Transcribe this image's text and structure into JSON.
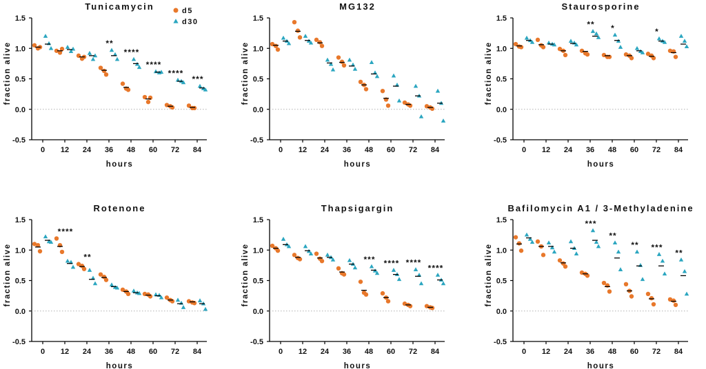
{
  "colors": {
    "d5": "#e8782b",
    "d30": "#2ba6c0",
    "axis": "#000000",
    "zero_line": "#b0b0b0"
  },
  "legend": [
    {
      "name": "d5",
      "symbol": "circle"
    },
    {
      "name": "d30",
      "symbol": "triangle"
    }
  ],
  "chart_data": [
    {
      "type": "scatter",
      "title": "Tunicamycin",
      "xlabel": "hours",
      "ylabel": "fraction alive",
      "x": [
        0,
        12,
        24,
        36,
        48,
        60,
        72,
        84
      ],
      "ylim": [
        -0.5,
        1.5
      ],
      "yticks": [
        "-0.5",
        "0.0",
        "0.5",
        "1.0",
        "1.5"
      ],
      "zero_line": true,
      "legend_placement": "top-right",
      "series": [
        {
          "name": "d5",
          "points": [
            [
              1.05,
              1.0,
              1.02
            ],
            [
              0.96,
              0.93,
              0.99
            ],
            [
              0.88,
              0.83,
              0.86
            ],
            [
              0.68,
              0.63,
              0.57
            ],
            [
              0.42,
              0.34,
              0.32
            ],
            [
              0.2,
              0.12,
              0.19
            ],
            [
              0.07,
              0.05,
              0.03
            ],
            [
              0.06,
              0.02,
              0.02
            ]
          ],
          "means": [
            1.02,
            0.96,
            0.86,
            0.64,
            0.36,
            0.17,
            0.05,
            0.03
          ]
        },
        {
          "name": "d30",
          "points": [
            [
              1.2,
              1.08,
              1.0
            ],
            [
              1.02,
              0.95,
              0.99
            ],
            [
              0.92,
              0.82,
              0.88
            ],
            [
              0.97,
              0.9,
              0.82
            ],
            [
              0.82,
              0.74,
              0.69
            ],
            [
              0.62,
              0.6,
              0.61
            ],
            [
              0.48,
              0.46,
              0.44
            ],
            [
              0.38,
              0.34,
              0.32
            ]
          ],
          "means": [
            1.07,
            0.98,
            0.88,
            0.88,
            0.75,
            0.61,
            0.46,
            0.35
          ]
        }
      ],
      "annotations": [
        "",
        "",
        "",
        "**",
        "****",
        "****",
        "****",
        "***"
      ]
    },
    {
      "type": "scatter",
      "title": "MG132",
      "xlabel": "hours",
      "ylabel": "fraction alive",
      "x": [
        0,
        12,
        24,
        36,
        48,
        60,
        72,
        84
      ],
      "ylim": [
        -0.5,
        1.5
      ],
      "yticks": [
        "-0.5",
        "0.0",
        "0.5",
        "1.0",
        "1.5"
      ],
      "zero_line": true,
      "legend_placement": "none",
      "series": [
        {
          "name": "d5",
          "points": [
            [
              1.07,
              1.04,
              0.98
            ],
            [
              1.43,
              1.29,
              1.18
            ],
            [
              1.14,
              1.1,
              1.04
            ],
            [
              0.85,
              0.78,
              0.72
            ],
            [
              0.45,
              0.4,
              0.33
            ],
            [
              0.3,
              0.16,
              0.06
            ],
            [
              0.11,
              0.08,
              0.06
            ],
            [
              0.05,
              0.03,
              0.01
            ]
          ],
          "means": [
            1.05,
            1.28,
            1.09,
            0.77,
            0.4,
            0.18,
            0.08,
            0.03
          ]
        },
        {
          "name": "d30",
          "points": [
            [
              1.17,
              1.12,
              1.08
            ],
            [
              1.2,
              1.12,
              1.09
            ],
            [
              0.81,
              0.74,
              0.65
            ],
            [
              0.81,
              0.73,
              0.66
            ],
            [
              0.77,
              0.6,
              0.54
            ],
            [
              0.55,
              0.4,
              0.14
            ],
            [
              0.38,
              0.22,
              -0.12
            ],
            [
              0.3,
              0.1,
              -0.19
            ]
          ],
          "means": [
            1.12,
            1.13,
            0.76,
            0.71,
            0.58,
            0.38,
            0.22,
            0.1
          ]
        }
      ],
      "annotations": [
        "",
        "",
        "",
        "",
        "",
        "",
        "",
        ""
      ]
    },
    {
      "type": "scatter",
      "title": "Staurosporine",
      "xlabel": "hours",
      "ylabel": "fraction alive",
      "x": [
        0,
        12,
        24,
        36,
        48,
        60,
        72,
        84
      ],
      "ylim": [
        -0.5,
        1.5
      ],
      "yticks": [
        "-0.5",
        "0.0",
        "0.5",
        "1.0",
        "1.5"
      ],
      "zero_line": true,
      "legend_placement": "none",
      "series": [
        {
          "name": "d5",
          "points": [
            [
              1.07,
              1.03,
              1.02
            ],
            [
              1.14,
              1.05,
              1.02
            ],
            [
              0.99,
              0.96,
              0.89
            ],
            [
              0.96,
              0.92,
              0.9
            ],
            [
              0.89,
              0.86,
              0.86
            ],
            [
              0.9,
              0.88,
              0.84
            ],
            [
              0.91,
              0.88,
              0.84
            ],
            [
              0.96,
              0.95,
              0.86
            ]
          ],
          "means": [
            1.04,
            1.06,
            0.96,
            0.95,
            0.88,
            0.88,
            0.87,
            0.93
          ]
        },
        {
          "name": "d30",
          "points": [
            [
              1.17,
              1.13,
              1.1
            ],
            [
              1.09,
              1.07,
              1.06
            ],
            [
              1.12,
              1.09,
              1.06
            ],
            [
              1.28,
              1.24,
              1.18
            ],
            [
              1.22,
              1.12,
              1.02
            ],
            [
              1.0,
              0.95,
              0.93
            ],
            [
              1.16,
              1.12,
              1.1
            ],
            [
              1.2,
              1.12,
              1.03
            ]
          ],
          "means": [
            1.13,
            1.07,
            1.08,
            1.2,
            1.13,
            0.96,
            1.12,
            1.07
          ]
        }
      ],
      "annotations": [
        "",
        "",
        "",
        "**",
        "*",
        "",
        "*",
        ""
      ]
    },
    {
      "type": "scatter",
      "title": "Rotenone",
      "xlabel": "hours",
      "ylabel": "fraction alive",
      "x": [
        0,
        12,
        24,
        36,
        48,
        60,
        72,
        84
      ],
      "ylim": [
        -0.5,
        1.5
      ],
      "yticks": [
        "-0.5",
        "0.0",
        "0.5",
        "1.0",
        "1.5"
      ],
      "zero_line": true,
      "legend_placement": "none",
      "series": [
        {
          "name": "d5",
          "points": [
            [
              1.1,
              1.08,
              0.98
            ],
            [
              1.19,
              1.08,
              0.97
            ],
            [
              0.77,
              0.74,
              0.69
            ],
            [
              0.6,
              0.56,
              0.51
            ],
            [
              0.35,
              0.32,
              0.28
            ],
            [
              0.28,
              0.27,
              0.24
            ],
            [
              0.22,
              0.18,
              0.16
            ],
            [
              0.16,
              0.14,
              0.13
            ]
          ],
          "means": [
            1.05,
            1.06,
            0.73,
            0.55,
            0.32,
            0.26,
            0.18,
            0.15
          ]
        },
        {
          "name": "d30",
          "points": [
            [
              1.22,
              1.14,
              1.13
            ],
            [
              0.82,
              0.8,
              0.72
            ],
            [
              0.67,
              0.54,
              0.45
            ],
            [
              0.43,
              0.39,
              0.38
            ],
            [
              0.33,
              0.3,
              0.29
            ],
            [
              0.27,
              0.26,
              0.22
            ],
            [
              0.18,
              0.13,
              0.06
            ],
            [
              0.17,
              0.12,
              0.03
            ]
          ],
          "means": [
            1.16,
            0.78,
            0.52,
            0.4,
            0.3,
            0.25,
            0.12,
            0.12
          ]
        }
      ],
      "annotations": [
        "",
        "****",
        "**",
        "",
        "",
        "",
        "",
        ""
      ]
    },
    {
      "type": "scatter",
      "title": "Thapsigargin",
      "xlabel": "hours",
      "ylabel": "fraction alive",
      "x": [
        0,
        12,
        24,
        36,
        48,
        60,
        72,
        84
      ],
      "ylim": [
        -0.5,
        1.5
      ],
      "yticks": [
        "-0.5",
        "0.0",
        "0.5",
        "1.0",
        "1.5"
      ],
      "zero_line": true,
      "legend_placement": "none",
      "series": [
        {
          "name": "d5",
          "points": [
            [
              1.07,
              1.03,
              0.99
            ],
            [
              0.92,
              0.87,
              0.85
            ],
            [
              0.94,
              0.86,
              0.82
            ],
            [
              0.7,
              0.62,
              0.6
            ],
            [
              0.48,
              0.3,
              0.27
            ],
            [
              0.29,
              0.22,
              0.16
            ],
            [
              0.12,
              0.1,
              0.08
            ],
            [
              0.08,
              0.06,
              0.05
            ]
          ],
          "means": [
            1.03,
            0.88,
            0.87,
            0.64,
            0.34,
            0.22,
            0.1,
            0.06
          ]
        },
        {
          "name": "d30",
          "points": [
            [
              1.18,
              1.09,
              1.06
            ],
            [
              1.06,
              0.98,
              0.94
            ],
            [
              0.92,
              0.88,
              0.84
            ],
            [
              0.83,
              0.77,
              0.71
            ],
            [
              0.73,
              0.66,
              0.62
            ],
            [
              0.67,
              0.6,
              0.52
            ],
            [
              0.68,
              0.59,
              0.45
            ],
            [
              0.59,
              0.51,
              0.45
            ]
          ],
          "means": [
            1.09,
            0.99,
            0.88,
            0.77,
            0.67,
            0.6,
            0.57,
            0.51
          ]
        }
      ],
      "annotations": [
        "",
        "",
        "",
        "",
        "***",
        "****",
        "****",
        "****"
      ]
    },
    {
      "type": "scatter",
      "title": "Bafilomycin A1 / 3-Methyladenine",
      "xlabel": "hours",
      "ylabel": "fraction alive",
      "x": [
        0,
        12,
        24,
        36,
        48,
        60,
        72,
        84
      ],
      "ylim": [
        -0.5,
        1.5
      ],
      "yticks": [
        "-0.5",
        "0.0",
        "0.5",
        "1.0",
        "1.5"
      ],
      "zero_line": true,
      "legend_placement": "none",
      "series": [
        {
          "name": "d5",
          "points": [
            [
              1.21,
              1.11,
              0.99
            ],
            [
              1.14,
              1.06,
              0.92
            ],
            [
              0.83,
              0.78,
              0.73
            ],
            [
              0.63,
              0.61,
              0.58
            ],
            [
              0.46,
              0.42,
              0.32
            ],
            [
              0.44,
              0.33,
              0.24
            ],
            [
              0.28,
              0.21,
              0.11
            ],
            [
              0.19,
              0.17,
              0.1
            ]
          ],
          "means": [
            1.1,
            1.06,
            0.79,
            0.61,
            0.4,
            0.33,
            0.2,
            0.16
          ]
        },
        {
          "name": "d30",
          "points": [
            [
              1.25,
              1.18,
              1.13
            ],
            [
              1.12,
              1.04,
              0.97
            ],
            [
              1.14,
              1.03,
              0.94
            ],
            [
              1.32,
              1.13,
              1.06
            ],
            [
              1.12,
              0.97,
              0.68
            ],
            [
              0.97,
              0.75,
              0.52
            ],
            [
              0.93,
              0.82,
              0.61
            ],
            [
              0.84,
              0.65,
              0.28
            ]
          ],
          "means": [
            1.2,
            1.06,
            1.03,
            1.16,
            0.87,
            0.74,
            0.74,
            0.58
          ]
        }
      ],
      "annotations": [
        "",
        "",
        "",
        "***",
        "**",
        "**",
        "***",
        "**"
      ]
    }
  ]
}
